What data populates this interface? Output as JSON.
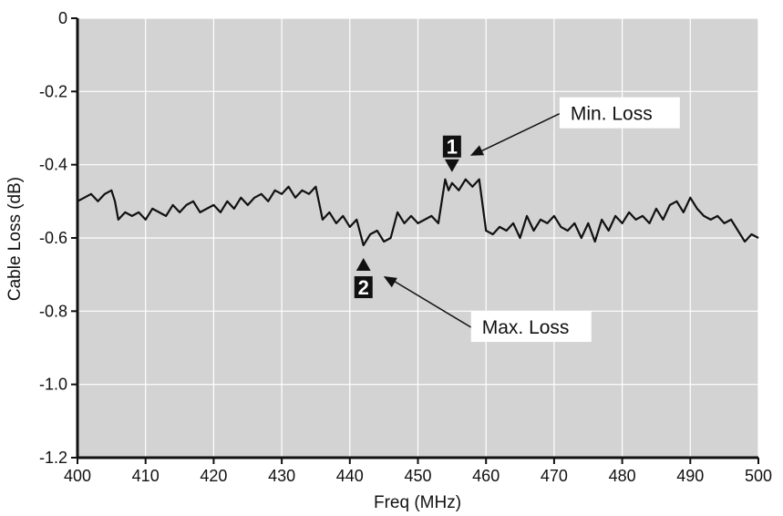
{
  "chart_data": {
    "type": "line",
    "xlabel": "Freq (MHz)",
    "ylabel": "Cable Loss (dB)",
    "xlim": [
      400,
      500
    ],
    "ylim": [
      -1.2,
      0
    ],
    "x_ticks": [
      400,
      410,
      420,
      430,
      440,
      450,
      460,
      470,
      480,
      490,
      500
    ],
    "y_ticks": [
      0,
      -0.2,
      -0.4,
      -0.6,
      -0.8,
      -1.0,
      -1.2
    ],
    "x_tick_labels": [
      "400",
      "410",
      "420",
      "430",
      "440",
      "450",
      "460",
      "470",
      "480",
      "490",
      "500"
    ],
    "y_tick_labels": [
      "0",
      "-0.2",
      "-0.4",
      "-0.6",
      "-0.8",
      "-1.0",
      "-1.2"
    ],
    "grid": true,
    "plot_background": "#d3d3d3",
    "grid_color": "#ffffff",
    "line_color": "#111111",
    "series": [
      {
        "x": [
          400,
          401,
          402,
          403,
          404,
          405,
          405.5,
          406,
          407,
          408,
          409,
          410,
          411,
          412,
          413,
          414,
          415,
          416,
          417,
          418,
          419,
          420,
          421,
          422,
          423,
          424,
          425,
          426,
          427,
          428,
          429,
          430,
          431,
          432,
          433,
          434,
          435,
          436,
          437,
          438,
          439,
          440,
          441,
          442,
          443,
          444,
          445,
          446,
          447,
          448,
          449,
          450,
          451,
          452,
          453,
          454,
          454.5,
          455,
          456,
          457,
          458,
          459,
          460,
          461,
          462,
          463,
          464,
          465,
          466,
          467,
          468,
          469,
          470,
          471,
          472,
          473,
          474,
          475,
          476,
          477,
          478,
          479,
          480,
          481,
          482,
          483,
          484,
          485,
          486,
          487,
          488,
          489,
          490,
          491,
          492,
          493,
          494,
          495,
          496,
          497,
          498,
          499,
          500
        ],
        "y": [
          -0.5,
          -0.49,
          -0.48,
          -0.5,
          -0.48,
          -0.47,
          -0.5,
          -0.55,
          -0.53,
          -0.54,
          -0.53,
          -0.55,
          -0.52,
          -0.53,
          -0.54,
          -0.51,
          -0.53,
          -0.51,
          -0.5,
          -0.53,
          -0.52,
          -0.51,
          -0.53,
          -0.5,
          -0.52,
          -0.49,
          -0.51,
          -0.49,
          -0.48,
          -0.5,
          -0.47,
          -0.48,
          -0.46,
          -0.49,
          -0.47,
          -0.48,
          -0.46,
          -0.55,
          -0.53,
          -0.56,
          -0.54,
          -0.57,
          -0.55,
          -0.62,
          -0.59,
          -0.58,
          -0.61,
          -0.6,
          -0.53,
          -0.56,
          -0.54,
          -0.56,
          -0.55,
          -0.54,
          -0.56,
          -0.44,
          -0.47,
          -0.45,
          -0.47,
          -0.44,
          -0.46,
          -0.44,
          -0.58,
          -0.59,
          -0.57,
          -0.58,
          -0.56,
          -0.6,
          -0.54,
          -0.58,
          -0.55,
          -0.56,
          -0.54,
          -0.57,
          -0.58,
          -0.56,
          -0.6,
          -0.56,
          -0.61,
          -0.55,
          -0.58,
          -0.54,
          -0.56,
          -0.53,
          -0.55,
          -0.54,
          -0.56,
          -0.52,
          -0.55,
          -0.51,
          -0.5,
          -0.53,
          -0.49,
          -0.52,
          -0.54,
          -0.55,
          -0.54,
          -0.56,
          -0.55,
          -0.58,
          -0.61,
          -0.59,
          -0.6
        ]
      }
    ],
    "markers": [
      {
        "label": "1",
        "x": 455,
        "y": -0.425,
        "direction": "down"
      },
      {
        "label": "2",
        "x": 442,
        "y": -0.615,
        "direction": "up"
      }
    ],
    "annotations": [
      {
        "text": "Min. Loss",
        "marker": "1"
      },
      {
        "text": "Max. Loss",
        "marker": "2"
      }
    ]
  }
}
